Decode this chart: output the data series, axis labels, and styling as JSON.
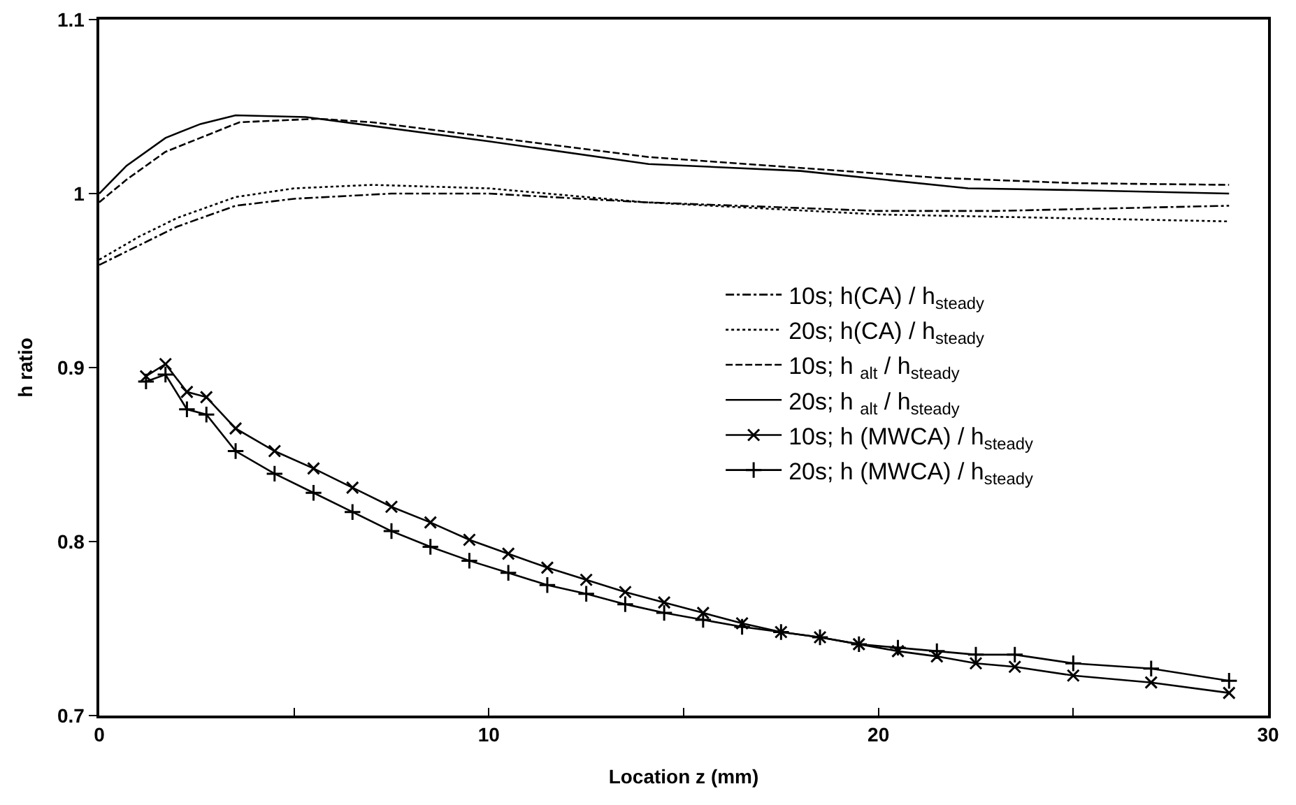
{
  "chart_data": {
    "type": "line",
    "xlabel": "Location z (mm)",
    "ylabel": "h ratio",
    "xlim": [
      0,
      30
    ],
    "xticks": [
      0,
      {
        "value": 5,
        "label": null
      },
      10,
      {
        "value": 15,
        "label": null
      },
      20,
      {
        "value": 25,
        "label": null
      },
      30
    ],
    "ylim": [
      0.7,
      1.1
    ],
    "yticks": [
      0.7,
      0.8,
      0.9,
      1,
      1.1
    ],
    "grid": false,
    "legend": "right",
    "series": [
      {
        "name": "10s; h(CA) / h$_{steady}$",
        "color": "#000000",
        "line_style": "dashdot",
        "marker": "none",
        "x": [
          0,
          1,
          2,
          3.5,
          5,
          7.5,
          10,
          14,
          20,
          23,
          29
        ],
        "values": [
          0.959,
          0.97,
          0.981,
          0.993,
          0.997,
          1.0,
          1.0,
          0.995,
          0.99,
          0.99,
          0.993
        ]
      },
      {
        "name": "20s; h(CA) / h$_{steady}$",
        "color": "#000000",
        "line_style": "dotted",
        "marker": "none",
        "x": [
          0,
          1,
          2,
          3.5,
          5,
          7,
          10,
          14,
          20,
          24.5,
          29
        ],
        "values": [
          0.962,
          0.975,
          0.986,
          0.998,
          1.003,
          1.005,
          1.003,
          0.995,
          0.988,
          0.986,
          0.984
        ]
      },
      {
        "name": "10s; h $_{alt}$ / h$_{steady}$",
        "color": "#000000",
        "line_style": "dashed",
        "marker": "none",
        "x": [
          0,
          0.7,
          1.7,
          3.6,
          5.6,
          7,
          14.1,
          21.6,
          25,
          29
        ],
        "values": [
          0.995,
          1.008,
          1.024,
          1.041,
          1.043,
          1.041,
          1.021,
          1.009,
          1.006,
          1.005
        ]
      },
      {
        "name": "20s; h $_{alt}$ / h$_{steady}$",
        "color": "#000000",
        "line_style": "solid",
        "marker": "none",
        "x": [
          0,
          0.7,
          1.7,
          2.6,
          3.5,
          5.3,
          10,
          14.1,
          18,
          22.3,
          25,
          29
        ],
        "values": [
          1.0,
          1.016,
          1.032,
          1.04,
          1.045,
          1.044,
          1.03,
          1.017,
          1.013,
          1.003,
          1.002,
          1.0
        ]
      },
      {
        "name": "10s; h (MWCA) / h$_{steady}$",
        "color": "#000000",
        "line_style": "solid",
        "marker": "x",
        "x": [
          1.2,
          1.7,
          2.25,
          2.75,
          3.5,
          4.5,
          5.5,
          6.5,
          7.5,
          8.5,
          9.5,
          10.5,
          11.5,
          12.5,
          13.5,
          14.5,
          15.5,
          16.5,
          17.5,
          18.5,
          19.5,
          20.5,
          21.5,
          22.5,
          23.5,
          25,
          27,
          29
        ],
        "values": [
          0.895,
          0.902,
          0.886,
          0.883,
          0.865,
          0.852,
          0.842,
          0.831,
          0.82,
          0.811,
          0.801,
          0.793,
          0.785,
          0.778,
          0.771,
          0.765,
          0.759,
          0.753,
          0.748,
          0.745,
          0.741,
          0.737,
          0.734,
          0.73,
          0.728,
          0.723,
          0.719,
          0.713
        ]
      },
      {
        "name": "20s; h (MWCA) / h$_{steady}$",
        "color": "#000000",
        "line_style": "solid",
        "marker": "cross",
        "x": [
          1.2,
          1.7,
          2.25,
          2.75,
          3.5,
          4.5,
          5.5,
          6.5,
          7.5,
          8.5,
          9.5,
          10.5,
          11.5,
          12.5,
          13.5,
          14.5,
          15.5,
          16.5,
          17.5,
          18.5,
          19.5,
          20.5,
          21.5,
          22.5,
          23.5,
          25,
          27,
          29
        ],
        "values": [
          0.892,
          0.896,
          0.876,
          0.873,
          0.852,
          0.839,
          0.828,
          0.817,
          0.806,
          0.797,
          0.789,
          0.782,
          0.775,
          0.77,
          0.764,
          0.759,
          0.755,
          0.751,
          0.748,
          0.745,
          0.741,
          0.739,
          0.737,
          0.735,
          0.735,
          0.73,
          0.727,
          0.72
        ]
      }
    ]
  }
}
